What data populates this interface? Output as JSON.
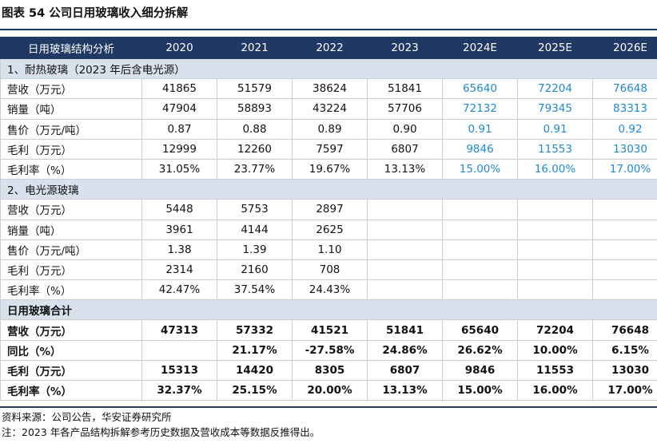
{
  "title": "图表 54 公司日用玻璃收入细分拆解",
  "header": [
    "日用玻璃结构分析",
    "2020",
    "2021",
    "2022",
    "2023",
    "2024E",
    "2025E",
    "2026E"
  ],
  "sections": [
    {
      "label": "1、耐热玻璃（2023 年后含电光源）",
      "rows": [
        {
          "label": "营收（万元）",
          "values": [
            "41865",
            "51579",
            "38624",
            "51841",
            "65640",
            "72204",
            "76648"
          ]
        },
        {
          "label": "销量（吨）",
          "values": [
            "47904",
            "58893",
            "43224",
            "57706",
            "72132",
            "79345",
            "83313"
          ]
        },
        {
          "label": "售价（万元/吨）",
          "values": [
            "0.87",
            "0.88",
            "0.89",
            "0.90",
            "0.91",
            "0.91",
            "0.92"
          ]
        },
        {
          "label": "毛利（万元）",
          "values": [
            "12999",
            "12260",
            "7597",
            "6807",
            "9846",
            "11553",
            "13030"
          ]
        },
        {
          "label": "毛利率（%）",
          "values": [
            "31.05%",
            "23.77%",
            "19.67%",
            "13.13%",
            "15.00%",
            "16.00%",
            "17.00%"
          ]
        }
      ]
    },
    {
      "label": "2、电光源玻璃",
      "rows": [
        {
          "label": "营收（万元）",
          "values": [
            "5448",
            "5753",
            "2897",
            "",
            "",
            "",
            ""
          ]
        },
        {
          "label": "销量（吨）",
          "values": [
            "3961",
            "4144",
            "2625",
            "",
            "",
            "",
            ""
          ]
        },
        {
          "label": "售价（万元/吨）",
          "values": [
            "1.38",
            "1.39",
            "1.10",
            "",
            "",
            "",
            ""
          ]
        },
        {
          "label": "毛利（万元）",
          "values": [
            "2314",
            "2160",
            "708",
            "",
            "",
            "",
            ""
          ]
        },
        {
          "label": "毛利率（%）",
          "values": [
            "42.47%",
            "37.54%",
            "24.43%",
            "",
            "",
            "",
            ""
          ]
        }
      ]
    },
    {
      "label": "日用玻璃合计",
      "rows": [
        {
          "label": "营收（万元）",
          "values": [
            "47313",
            "57332",
            "41521",
            "51841",
            "65640",
            "72204",
            "76648"
          ]
        },
        {
          "label": "同比（%）",
          "values": [
            "",
            "21.17%",
            "-27.58%",
            "24.86%",
            "26.62%",
            "10.00%",
            "6.15%"
          ]
        },
        {
          "label": "毛利（万元）",
          "values": [
            "15313",
            "14420",
            "8305",
            "6807",
            "9846",
            "11553",
            "13030"
          ]
        },
        {
          "label": "毛利率（%）",
          "values": [
            "32.37%",
            "25.15%",
            "20.00%",
            "13.13%",
            "15.00%",
            "16.00%",
            "17.00%"
          ]
        }
      ]
    }
  ],
  "source": "资料来源：公司公告，华安证券研究所",
  "note": "注：2023 年各产品结构拆解参考历史数据及营收成本等数据反推得出。",
  "colors": {
    "header_bg": "#1f3864",
    "section_bg": "#d9e1ed",
    "estimate_text": "#1f8ad0"
  }
}
